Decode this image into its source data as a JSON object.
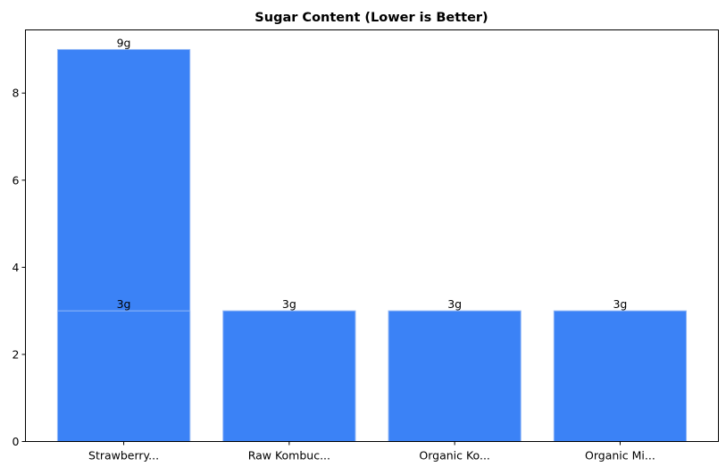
{
  "chart_data": {
    "type": "bar",
    "title": "Sugar Content (Lower is Better)",
    "xlabel": "",
    "ylabel": "",
    "categories": [
      "Strawberry...",
      "Raw Kombuc...",
      "Organic Ko...",
      "Organic Mi..."
    ],
    "bars": [
      {
        "category": "Strawberry...",
        "value": 9,
        "label": "9g"
      },
      {
        "category": "Strawberry...",
        "value": 3,
        "label": "3g"
      },
      {
        "category": "Raw Kombuc...",
        "value": 3,
        "label": "3g"
      },
      {
        "category": "Organic Ko...",
        "value": 3,
        "label": "3g"
      },
      {
        "category": "Organic Mi...",
        "value": 3,
        "label": "3g"
      }
    ],
    "yticks": [
      0,
      2,
      4,
      6,
      8
    ],
    "ylim": [
      0,
      9.45
    ],
    "grid": false,
    "legend": "none",
    "bar_color": "#3b82f6",
    "bar_edge_color": "#93b8f5"
  }
}
